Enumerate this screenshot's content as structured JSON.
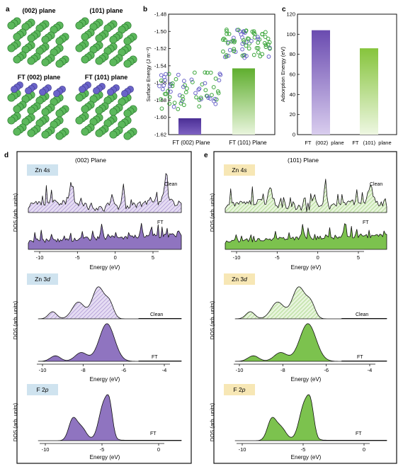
{
  "panel_letters": {
    "a": "a",
    "b": "b",
    "c": "c",
    "d": "d",
    "e": "e"
  },
  "panel_a": {
    "labels": [
      "(002) plane",
      "(101) plane",
      "FT (002) plane",
      "FT (101) plane"
    ],
    "colors": {
      "zn": "#5cb85c",
      "zn_edge": "#2e7d32",
      "f": "#6a63c9"
    }
  },
  "panel_b": {
    "ylabel": "Surface Energy (J m⁻²)",
    "categories": [
      "FT (002) Plane",
      "FT (101) Plane"
    ],
    "values": [
      -1.601,
      -1.543
    ],
    "ylim": [
      -1.62,
      -1.48
    ],
    "yticks": [
      "-1.48",
      "-1.50",
      "-1.52",
      "-1.54",
      "-1.56",
      "-1.58",
      "-1.60",
      "-1.62"
    ],
    "colors": [
      "#5a3ea0",
      "#6dbb3c"
    ]
  },
  "panel_c": {
    "ylabel": "Adsorption Energy (eV)",
    "categories": [
      "FT   (002)  plane",
      "FT   (101)  plane"
    ],
    "values": [
      104,
      86
    ],
    "ylim": [
      0,
      120
    ],
    "yticks": [
      "0",
      "20",
      "40",
      "60",
      "80",
      "100",
      "120"
    ],
    "colors": [
      "#7a5bb8",
      "#8cc63f"
    ]
  },
  "panel_d": {
    "title": "(002) Plane",
    "ylabel": "DOS (arb. units)",
    "xlabel": "Energy (eV)",
    "colors": {
      "fill": "#8f74c0",
      "hatch": "#c9b8e6",
      "line": "#111111",
      "tag_bg": "#cfe3ef"
    },
    "zn4s": {
      "tag": "Zn 4s",
      "clean_label": "Clean",
      "ft_label": "FT",
      "xticks": [
        "-10",
        "-5",
        "0",
        "5"
      ]
    },
    "zn3d": {
      "tag": "Zn 3d",
      "clean_label": "Clean",
      "ft_label": "FT",
      "xticks": [
        "-10",
        "-8",
        "-6",
        "-4"
      ]
    },
    "f2p": {
      "tag": "F 2p",
      "ft_label": "FT",
      "xticks": [
        "-10",
        "-5",
        "0"
      ]
    }
  },
  "panel_e": {
    "title": "(101) Plane",
    "ylabel": "DOS (arb. units)",
    "xlabel": "Energy (eV)",
    "colors": {
      "fill": "#7cc24e",
      "hatch": "#c9e7b0",
      "line": "#111111",
      "tag_bg": "#f7e7b5"
    },
    "zn4s": {
      "tag": "Zn 4s",
      "clean_label": "Clean",
      "ft_label": "FT",
      "xticks": [
        "-10",
        "-5",
        "0",
        "5"
      ]
    },
    "zn3d": {
      "tag": "Zn 3d",
      "clean_label": "Clean",
      "ft_label": "FT",
      "xticks": [
        "-10",
        "-8",
        "-6",
        "-4"
      ]
    },
    "f2p": {
      "tag": "F 2p",
      "ft_label": "FT",
      "xticks": [
        "-10",
        "-5",
        "0"
      ]
    }
  },
  "chart_data": [
    {
      "type": "bar",
      "panel": "b",
      "categories": [
        "FT (002) Plane",
        "FT (101) Plane"
      ],
      "values": [
        -1.601,
        -1.543
      ],
      "ylabel": "Surface Energy (J m⁻²)",
      "ylim": [
        -1.62,
        -1.48
      ]
    },
    {
      "type": "bar",
      "panel": "c",
      "categories": [
        "FT (002) plane",
        "FT (101) plane"
      ],
      "values": [
        104,
        86
      ],
      "ylabel": "Adsorption Energy (eV)",
      "ylim": [
        0,
        120
      ]
    },
    {
      "type": "area",
      "panel": "d",
      "title": "(002) Plane",
      "xlabel": "Energy (eV)",
      "ylabel": "DOS (arb. units)",
      "series": [
        {
          "name": "Zn 4s Clean"
        },
        {
          "name": "Zn 4s FT"
        },
        {
          "name": "Zn 3d Clean"
        },
        {
          "name": "Zn 3d FT"
        },
        {
          "name": "F 2p FT"
        }
      ]
    },
    {
      "type": "area",
      "panel": "e",
      "title": "(101) Plane",
      "xlabel": "Energy (eV)",
      "ylabel": "DOS (arb. units)",
      "series": [
        {
          "name": "Zn 4s Clean"
        },
        {
          "name": "Zn 4s FT"
        },
        {
          "name": "Zn 3d Clean"
        },
        {
          "name": "Zn 3d FT"
        },
        {
          "name": "F 2p FT"
        }
      ]
    }
  ]
}
